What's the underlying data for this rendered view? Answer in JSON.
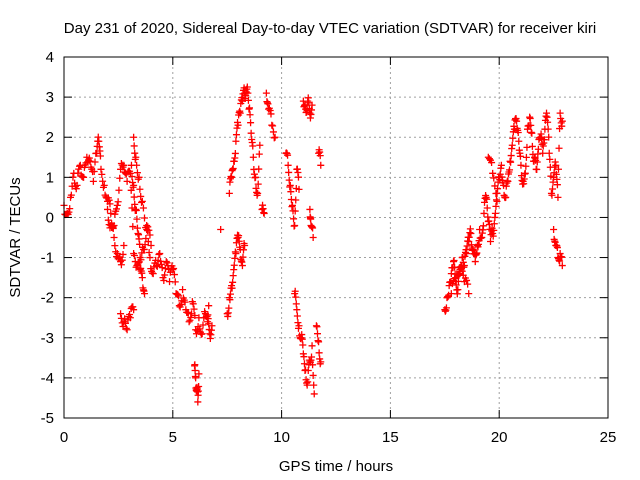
{
  "chart_data": {
    "type": "scatter",
    "title": "Day 231 of 2020, Sidereal Day-to-day VTEC variation (SDTVAR) for receiver kiri",
    "xlabel": "GPS time / hours",
    "ylabel": "SDTVAR / TECUs",
    "xlim": [
      0,
      25
    ],
    "ylim": [
      -5,
      4
    ],
    "xticks": [
      "0",
      "5",
      "10",
      "15",
      "20",
      "25"
    ],
    "yticks": [
      "-5",
      "-4",
      "-3",
      "-2",
      "-1",
      "0",
      "1",
      "2",
      "3",
      "4"
    ],
    "grid": true,
    "marker": "+",
    "series": [
      {
        "name": "SDTVAR",
        "color": "#ff0000",
        "segments": [
          [
            [
              0.0,
              0.3
            ],
            [
              0.15,
              0.1
            ],
            [
              0.3,
              0.5
            ],
            [
              0.45,
              1.1
            ],
            [
              0.6,
              0.8
            ],
            [
              0.75,
              1.3
            ],
            [
              0.9,
              1.0
            ],
            [
              1.05,
              1.5
            ],
            [
              1.2,
              1.4
            ],
            [
              1.35,
              0.9
            ],
            [
              1.5,
              1.6
            ],
            [
              1.6,
              1.9
            ],
            [
              1.7,
              1.2
            ],
            [
              1.85,
              0.8
            ],
            [
              2.0,
              0.4
            ],
            [
              2.15,
              0.1
            ],
            [
              2.3,
              -0.2
            ],
            [
              2.45,
              0.3
            ],
            [
              2.6,
              1.2
            ],
            [
              2.75,
              1.3
            ],
            [
              2.9,
              0.9
            ],
            [
              3.05,
              1.1
            ],
            [
              3.2,
              -0.9
            ],
            [
              3.35,
              -1.2
            ],
            [
              3.5,
              -1.3
            ],
            [
              3.65,
              -0.8
            ],
            [
              3.8,
              -0.2
            ],
            [
              3.95,
              -1.0
            ],
            [
              4.1,
              -1.4
            ],
            [
              4.25,
              -1.2
            ],
            [
              4.4,
              -0.9
            ],
            [
              4.55,
              -1.5
            ],
            [
              4.7,
              -1.1
            ],
            [
              4.85,
              -1.6
            ],
            [
              5.0,
              -1.3
            ],
            [
              5.15,
              -1.9
            ],
            [
              5.3,
              -2.2
            ],
            [
              5.45,
              -1.8
            ],
            [
              5.6,
              -2.3
            ],
            [
              5.75,
              -2.6
            ],
            [
              5.9,
              -2.1
            ],
            [
              6.05,
              -2.8
            ],
            [
              6.2,
              -2.5
            ],
            [
              6.35,
              -2.9
            ],
            [
              6.5,
              -2.4
            ],
            [
              6.65,
              -2.2
            ]
          ],
          [
            [
              2.0,
              0.2
            ],
            [
              2.15,
              -0.2
            ],
            [
              2.3,
              -0.5
            ],
            [
              2.45,
              -0.9
            ],
            [
              2.6,
              -1.1
            ],
            [
              2.75,
              -0.7
            ]
          ],
          [
            [
              3.1,
              1.3
            ],
            [
              3.2,
              0.8
            ],
            [
              3.3,
              0.2
            ],
            [
              3.4,
              -0.4
            ],
            [
              3.5,
              -1.0
            ],
            [
              3.6,
              -1.5
            ],
            [
              3.7,
              -1.9
            ]
          ],
          [
            [
              2.6,
              -2.4
            ],
            [
              2.75,
              -2.6
            ],
            [
              2.9,
              -2.8
            ],
            [
              3.05,
              -2.5
            ],
            [
              3.2,
              -2.3
            ]
          ],
          [
            [
              3.2,
              2.0
            ],
            [
              3.3,
              1.5
            ],
            [
              3.45,
              1.0
            ],
            [
              3.6,
              0.4
            ],
            [
              3.8,
              -0.3
            ],
            [
              4.0,
              -0.7
            ]
          ],
          [
            [
              6.0,
              -3.7
            ],
            [
              6.05,
              -4.0
            ],
            [
              6.1,
              -4.3
            ],
            [
              6.15,
              -4.6
            ],
            [
              6.2,
              -3.9
            ]
          ],
          [
            [
              6.6,
              -2.6
            ],
            [
              6.7,
              -2.9
            ],
            [
              6.8,
              -2.7
            ]
          ],
          [
            [
              7.2,
              -0.3
            ]
          ],
          [
            [
              7.5,
              -2.4
            ],
            [
              7.6,
              -2.0
            ],
            [
              7.7,
              -1.7
            ],
            [
              7.8,
              -1.3
            ],
            [
              7.9,
              -0.9
            ],
            [
              8.0,
              -0.5
            ],
            [
              8.1,
              -0.8
            ],
            [
              8.2,
              -1.2
            ],
            [
              8.3,
              -0.7
            ]
          ],
          [
            [
              7.6,
              0.6
            ],
            [
              7.7,
              1.0
            ],
            [
              7.8,
              1.4
            ],
            [
              7.9,
              1.9
            ],
            [
              8.0,
              2.3
            ],
            [
              8.1,
              2.6
            ],
            [
              8.2,
              2.9
            ],
            [
              8.3,
              3.1
            ],
            [
              8.4,
              3.2
            ],
            [
              8.5,
              2.7
            ],
            [
              8.6,
              2.1
            ],
            [
              8.7,
              1.5
            ],
            [
              8.8,
              1.0
            ],
            [
              8.9,
              0.6
            ],
            [
              9.0,
              1.8
            ]
          ],
          [
            [
              9.1,
              0.2
            ],
            [
              9.2,
              0.1
            ]
          ],
          [
            [
              9.3,
              3.1
            ],
            [
              9.4,
              2.7
            ],
            [
              9.55,
              2.3
            ],
            [
              9.7,
              2.0
            ]
          ],
          [
            [
              10.2,
              1.6
            ],
            [
              10.3,
              1.3
            ],
            [
              10.4,
              0.8
            ],
            [
              10.5,
              0.3
            ],
            [
              10.6,
              -0.2
            ],
            [
              10.7,
              1.2
            ],
            [
              10.8,
              0.7
            ]
          ],
          [
            [
              11.0,
              2.9
            ],
            [
              11.1,
              2.7
            ],
            [
              11.2,
              2.9
            ],
            [
              11.3,
              2.6
            ],
            [
              11.4,
              2.8
            ]
          ],
          [
            [
              11.3,
              0.2
            ],
            [
              11.35,
              -0.2
            ],
            [
              11.45,
              -0.5
            ]
          ],
          [
            [
              11.7,
              1.6
            ],
            [
              11.8,
              1.3
            ]
          ],
          [
            [
              10.6,
              -1.9
            ],
            [
              10.7,
              -2.3
            ],
            [
              10.8,
              -2.7
            ],
            [
              10.9,
              -3.0
            ],
            [
              11.0,
              -3.4
            ],
            [
              11.1,
              -3.8
            ],
            [
              11.2,
              -4.1
            ],
            [
              11.3,
              -3.6
            ],
            [
              11.4,
              -3.2
            ],
            [
              11.5,
              -4.4
            ]
          ],
          [
            [
              11.6,
              -2.7
            ],
            [
              11.7,
              -3.1
            ],
            [
              11.8,
              -3.6
            ]
          ],
          [
            [
              17.5,
              -2.3
            ],
            [
              17.6,
              -2.0
            ],
            [
              17.7,
              -1.7
            ],
            [
              17.8,
              -1.4
            ],
            [
              17.9,
              -1.1
            ],
            [
              18.0,
              -1.5
            ],
            [
              18.1,
              -1.8
            ],
            [
              18.2,
              -1.3
            ],
            [
              18.3,
              -1.0
            ],
            [
              18.4,
              -1.2
            ],
            [
              18.5,
              -0.9
            ],
            [
              18.6,
              -0.6
            ],
            [
              18.7,
              -0.4
            ],
            [
              18.8,
              -0.8
            ],
            [
              18.9,
              -1.1
            ],
            [
              19.0,
              -0.7
            ],
            [
              19.1,
              -0.3
            ],
            [
              19.2,
              -0.5
            ],
            [
              19.3,
              0.1
            ],
            [
              19.4,
              0.5
            ],
            [
              19.5,
              -0.1
            ],
            [
              19.6,
              -0.6
            ],
            [
              19.7,
              -0.4
            ],
            [
              19.8,
              0.0
            ],
            [
              19.9,
              0.4
            ],
            [
              20.0,
              1.0
            ],
            [
              20.1,
              1.3
            ],
            [
              20.2,
              0.8
            ],
            [
              20.3,
              0.5
            ],
            [
              20.4,
              0.9
            ],
            [
              20.5,
              1.4
            ],
            [
              20.6,
              1.8
            ],
            [
              20.7,
              2.2
            ],
            [
              20.8,
              2.4
            ],
            [
              20.9,
              1.9
            ],
            [
              21.0,
              1.3
            ],
            [
              21.1,
              0.9
            ],
            [
              21.2,
              1.1
            ],
            [
              21.3,
              2.2
            ],
            [
              21.4,
              2.5
            ],
            [
              21.5,
              2.1
            ],
            [
              21.6,
              1.4
            ],
            [
              21.7,
              1.2
            ],
            [
              21.8,
              1.7
            ],
            [
              21.9,
              2.0
            ],
            [
              22.0,
              1.6
            ],
            [
              22.1,
              2.2
            ],
            [
              22.2,
              2.5
            ],
            [
              22.3,
              1.6
            ],
            [
              22.4,
              0.6
            ],
            [
              22.5,
              1.0
            ],
            [
              22.6,
              1.3
            ],
            [
              22.7,
              0.5
            ],
            [
              22.8,
              2.6
            ],
            [
              22.9,
              2.4
            ]
          ],
          [
            [
              17.8,
              -1.9
            ],
            [
              18.0,
              -1.6
            ],
            [
              18.2,
              -1.4
            ],
            [
              18.4,
              -1.6
            ],
            [
              18.6,
              -1.9
            ]
          ],
          [
            [
              19.5,
              1.5
            ],
            [
              19.7,
              1.1
            ],
            [
              19.9,
              0.6
            ]
          ],
          [
            [
              22.5,
              -0.3
            ],
            [
              22.6,
              -0.7
            ],
            [
              22.7,
              -1.0
            ],
            [
              22.8,
              -0.9
            ],
            [
              22.9,
              -1.2
            ]
          ]
        ]
      }
    ]
  }
}
